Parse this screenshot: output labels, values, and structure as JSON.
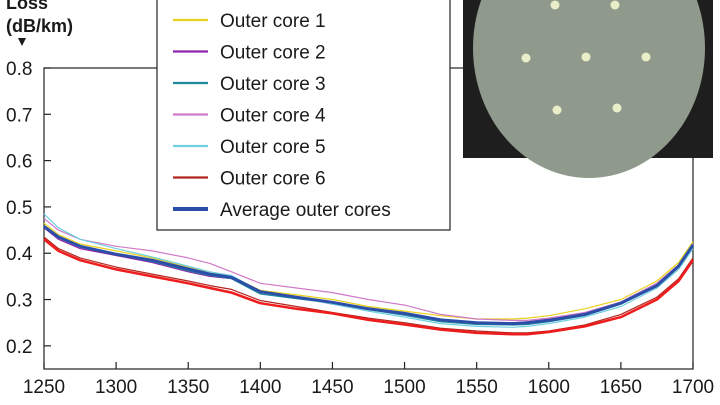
{
  "chart_data": {
    "type": "line",
    "title": "",
    "xlabel": "",
    "ylabel_lines": [
      "Loss",
      "(dB/km)"
    ],
    "xlim": [
      1250,
      1700
    ],
    "ylim": [
      0.15,
      0.8
    ],
    "xticks": [
      1250,
      1300,
      1350,
      1400,
      1450,
      1500,
      1550,
      1600,
      1650,
      1700
    ],
    "yticks": [
      0.2,
      0.3,
      0.4,
      0.5,
      0.6,
      0.7,
      0.8
    ],
    "ytick_labels": [
      "0.2",
      "0.3",
      "0.4",
      "0.5",
      "0.6",
      "0.7",
      "0.8"
    ],
    "grid": false,
    "legend_position": "top-center",
    "x": [
      1250,
      1260,
      1275,
      1300,
      1325,
      1350,
      1365,
      1380,
      1400,
      1425,
      1450,
      1475,
      1500,
      1525,
      1550,
      1575,
      1585,
      1600,
      1625,
      1650,
      1675,
      1690,
      1700
    ],
    "series": [
      {
        "name": "Outer core 1",
        "color": "#e8d21e",
        "width": 1.2,
        "values": [
          0.465,
          0.44,
          0.42,
          0.405,
          0.39,
          0.37,
          0.36,
          0.35,
          0.32,
          0.31,
          0.3,
          0.285,
          0.275,
          0.265,
          0.258,
          0.258,
          0.26,
          0.265,
          0.28,
          0.3,
          0.34,
          0.38,
          0.425
        ]
      },
      {
        "name": "Outer core 2",
        "color": "#8e24aa",
        "width": 1.2,
        "values": [
          0.455,
          0.43,
          0.41,
          0.395,
          0.38,
          0.36,
          0.35,
          0.345,
          0.315,
          0.305,
          0.29,
          0.28,
          0.27,
          0.255,
          0.25,
          0.25,
          0.252,
          0.258,
          0.27,
          0.295,
          0.335,
          0.375,
          0.42
        ]
      },
      {
        "name": "Outer core 3",
        "color": "#1e8a9c",
        "width": 1.2,
        "values": [
          0.46,
          0.435,
          0.415,
          0.398,
          0.382,
          0.362,
          0.352,
          0.345,
          0.312,
          0.302,
          0.292,
          0.278,
          0.266,
          0.252,
          0.246,
          0.245,
          0.246,
          0.252,
          0.265,
          0.29,
          0.33,
          0.37,
          0.415
        ]
      },
      {
        "name": "Outer core 4",
        "color": "#d07ac8",
        "width": 1.2,
        "values": [
          0.475,
          0.45,
          0.43,
          0.415,
          0.405,
          0.39,
          0.378,
          0.36,
          0.335,
          0.325,
          0.315,
          0.3,
          0.288,
          0.268,
          0.258,
          0.255,
          0.255,
          0.26,
          0.272,
          0.295,
          0.335,
          0.375,
          0.42
        ]
      },
      {
        "name": "Outer core 5",
        "color": "#6fd0e0",
        "width": 1.2,
        "values": [
          0.485,
          0.455,
          0.43,
          0.41,
          0.392,
          0.372,
          0.36,
          0.352,
          0.318,
          0.305,
          0.29,
          0.275,
          0.262,
          0.248,
          0.242,
          0.24,
          0.242,
          0.248,
          0.262,
          0.285,
          0.325,
          0.365,
          0.41
        ]
      },
      {
        "name": "Outer core 6",
        "color": "#b3261e",
        "width": 1.2,
        "values": [
          0.435,
          0.41,
          0.39,
          0.37,
          0.355,
          0.34,
          0.33,
          0.322,
          0.298,
          0.285,
          0.272,
          0.26,
          0.25,
          0.238,
          0.232,
          0.228,
          0.228,
          0.232,
          0.245,
          0.268,
          0.305,
          0.345,
          0.39
        ]
      },
      {
        "name": "Average outer cores",
        "color": "#2b4fa8",
        "width": 3,
        "values": [
          0.458,
          0.435,
          0.415,
          0.398,
          0.385,
          0.366,
          0.355,
          0.348,
          0.317,
          0.305,
          0.294,
          0.28,
          0.27,
          0.256,
          0.25,
          0.248,
          0.25,
          0.255,
          0.268,
          0.292,
          0.33,
          0.372,
          0.418
        ]
      }
    ],
    "extra_curve": {
      "color": "#ee1c1c",
      "width": 2.5,
      "values": [
        0.43,
        0.405,
        0.385,
        0.365,
        0.35,
        0.335,
        0.325,
        0.315,
        0.292,
        0.28,
        0.27,
        0.256,
        0.246,
        0.235,
        0.228,
        0.225,
        0.225,
        0.23,
        0.242,
        0.262,
        0.3,
        0.34,
        0.385
      ]
    },
    "inset_image": {
      "description_colors": {
        "background": "#1e1e1e",
        "disk": "#8f9a8c",
        "dot": "#eaeec8"
      }
    }
  }
}
